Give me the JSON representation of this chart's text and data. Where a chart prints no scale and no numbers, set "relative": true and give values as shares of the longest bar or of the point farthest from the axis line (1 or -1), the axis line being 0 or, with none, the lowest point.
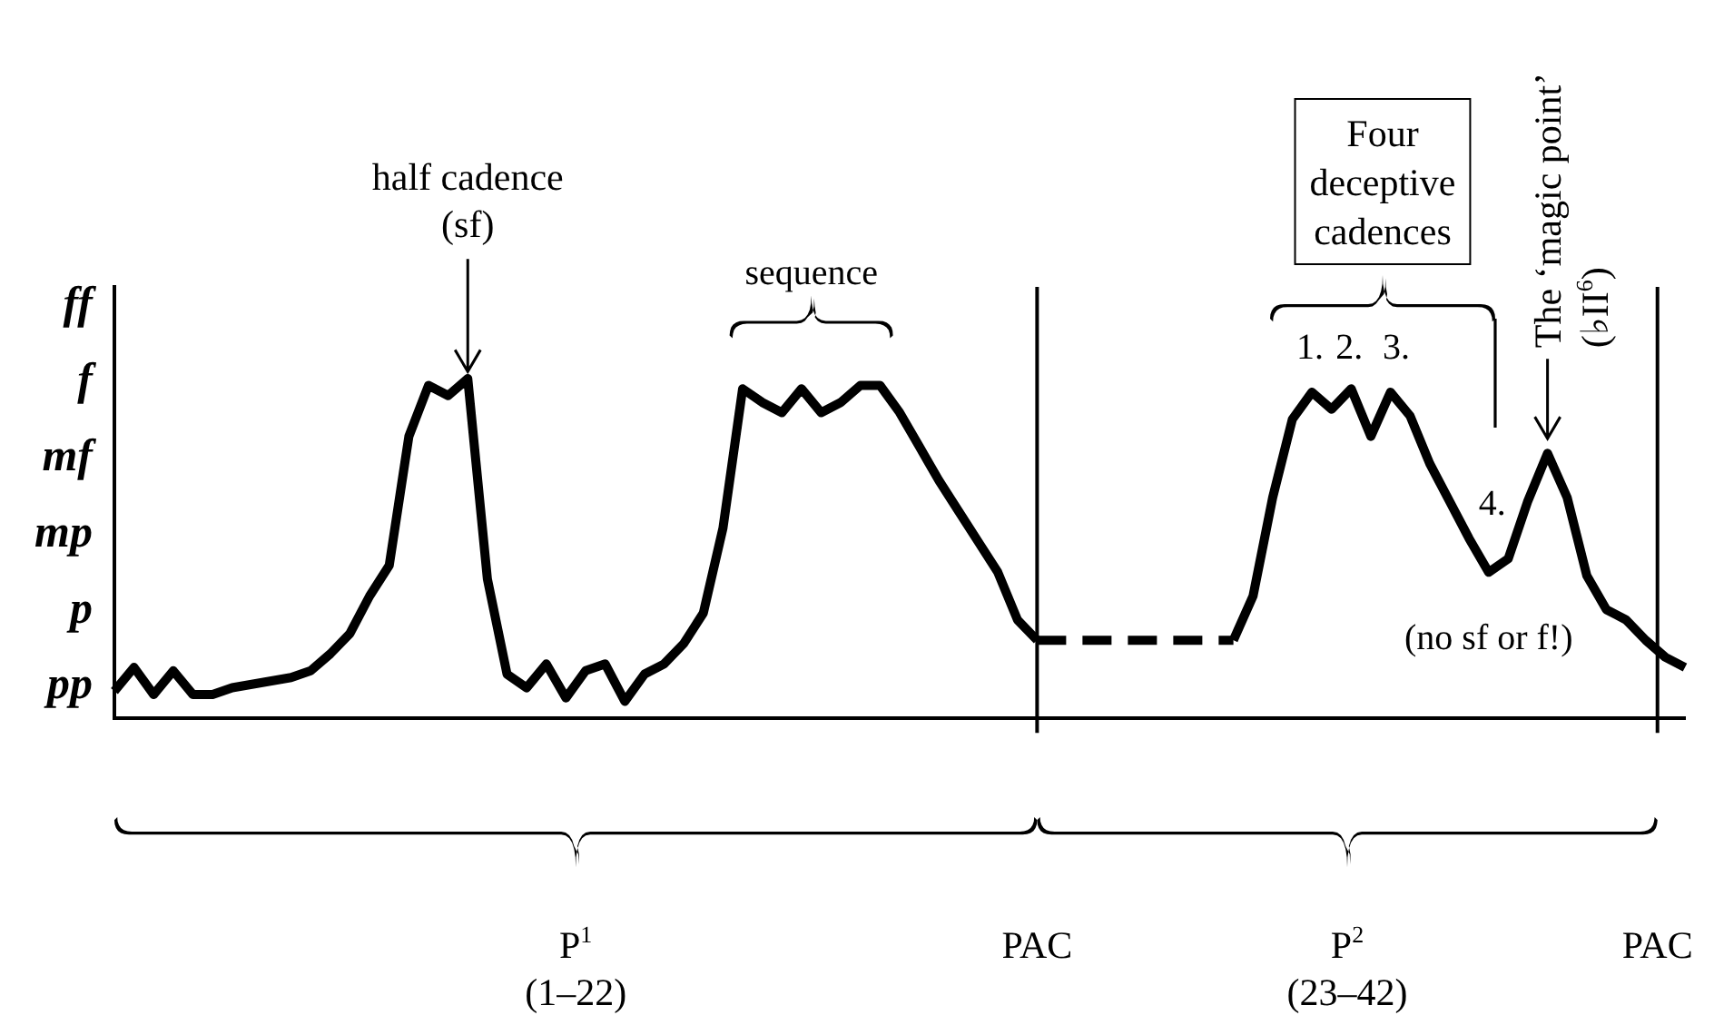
{
  "chart_data": {
    "type": "line",
    "relative": true,
    "legend": false,
    "marker": "none",
    "categories": [
      null,
      null,
      null,
      null,
      null,
      null,
      null,
      null,
      null,
      null,
      null,
      null,
      null,
      null,
      null,
      null,
      null,
      null,
      null,
      null,
      null,
      null,
      null,
      null,
      null,
      null,
      null,
      null,
      null,
      null,
      null,
      null,
      null,
      null,
      null,
      null,
      null,
      null,
      null,
      null,
      null,
      null,
      null,
      null,
      null,
      null,
      null,
      null,
      null,
      null,
      null,
      null,
      null,
      null,
      null,
      null,
      null,
      null,
      null,
      null,
      null,
      null,
      null,
      null,
      null,
      null,
      null,
      null,
      null,
      null,
      null,
      null,
      null,
      null,
      null,
      null,
      null,
      null,
      null,
      null,
      null
    ],
    "series": [
      {
        "color": "#000000",
        "line_style": "solid",
        "values": [
          0.08,
          0.15,
          0.07,
          0.14,
          0.07,
          0.07,
          0.09,
          0.1,
          0.11,
          0.12,
          0.14,
          0.19,
          0.25,
          0.36,
          0.45,
          0.83,
          0.98,
          0.95,
          1.0,
          0.41,
          0.13,
          0.09,
          0.16,
          0.06,
          0.14,
          0.16,
          0.05,
          0.13,
          0.16,
          0.22,
          0.31,
          0.56,
          0.97,
          0.93,
          0.9,
          0.97,
          0.9,
          0.93,
          0.98,
          0.98,
          0.9,
          0.8,
          0.7,
          0.61,
          0.52,
          0.43,
          0.29,
          0.23,
          null,
          null,
          null,
          null,
          null,
          null,
          null,
          null,
          null,
          null,
          null,
          null,
          null,
          null,
          null,
          null,
          null,
          null,
          null,
          null,
          null,
          null,
          null,
          null,
          null,
          null,
          null,
          null,
          null,
          null,
          null,
          null,
          null
        ]
      },
      {
        "color": "#000000",
        "line_style": "dashed",
        "values": [
          null,
          null,
          null,
          null,
          null,
          null,
          null,
          null,
          null,
          null,
          null,
          null,
          null,
          null,
          null,
          null,
          null,
          null,
          null,
          null,
          null,
          null,
          null,
          null,
          null,
          null,
          null,
          null,
          null,
          null,
          null,
          null,
          null,
          null,
          null,
          null,
          null,
          null,
          null,
          null,
          null,
          null,
          null,
          null,
          null,
          null,
          null,
          0.23,
          0.23,
          0.23,
          0.23,
          0.23,
          0.23,
          0.23,
          0.23,
          0.23,
          0.23,
          0.23,
          null,
          null,
          null,
          null,
          null,
          null,
          null,
          null,
          null,
          null,
          null,
          null,
          null,
          null,
          null,
          null,
          null,
          null,
          null,
          null,
          null,
          null,
          null
        ]
      },
      {
        "color": "#000000",
        "line_style": "solid",
        "values": [
          null,
          null,
          null,
          null,
          null,
          null,
          null,
          null,
          null,
          null,
          null,
          null,
          null,
          null,
          null,
          null,
          null,
          null,
          null,
          null,
          null,
          null,
          null,
          null,
          null,
          null,
          null,
          null,
          null,
          null,
          null,
          null,
          null,
          null,
          null,
          null,
          null,
          null,
          null,
          null,
          null,
          null,
          null,
          null,
          null,
          null,
          null,
          null,
          null,
          null,
          null,
          null,
          null,
          null,
          null,
          null,
          null,
          0.23,
          0.36,
          0.65,
          0.88,
          0.96,
          0.91,
          0.97,
          0.83,
          0.96,
          0.89,
          0.75,
          0.64,
          0.53,
          0.43,
          0.47,
          0.64,
          0.78,
          0.65,
          0.42,
          0.32,
          0.29,
          0.23,
          0.18,
          0.15
        ]
      }
    ],
    "annotations": [
      "half cadence\n(sf)",
      "sequence",
      "Four\ndeceptive\ncadences",
      "1.",
      "2.",
      "3.",
      "4.",
      "(no sf or f!)",
      "The ‘magic point’\n(♭II$^{6}$)",
      "P$^{1}$\n(1–22)",
      "PAC",
      "P$^{2}$\n(23–42)",
      "PAC",
      "pp",
      "p",
      "mp",
      "mf",
      "f",
      "ff"
    ]
  }
}
